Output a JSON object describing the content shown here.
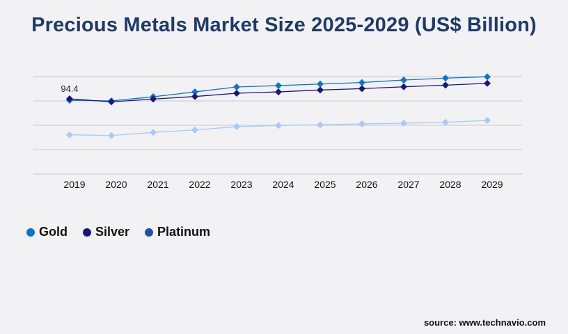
{
  "title": "Precious Metals Market Size 2025-2029 (US$ Billion)",
  "source": "source: www.technavio.com",
  "chart_data": {
    "type": "line",
    "title": "Precious Metals Market Size 2025-2029 (US$ Billion)",
    "categories": [
      "2019",
      "2020",
      "2021",
      "2022",
      "2023",
      "2024",
      "2025",
      "2026",
      "2027",
      "2028",
      "2029"
    ],
    "ylim": [
      0,
      122.4
    ],
    "grid": true,
    "y_tick_labels_shown": false,
    "legend_position": "bottom-left",
    "series": [
      {
        "name": "Gold",
        "color": "#0a74d0",
        "line_color": "#0a74d0",
        "values": [
          92.6,
          91.8,
          97.0,
          103.1,
          109.3,
          111.0,
          113.0,
          114.9,
          118.0,
          120.4,
          122.1
        ]
      },
      {
        "name": "Silver",
        "color": "#1a1580",
        "line_color": "#1a1580",
        "values": [
          94.4,
          90.6,
          94.1,
          97.3,
          101.4,
          103.1,
          105.5,
          107.2,
          109.5,
          111.6,
          113.9
        ]
      },
      {
        "name": "Platinum",
        "color": "#1f4fb0",
        "line_color": "#a8c8f8",
        "values": [
          49.2,
          48.3,
          52.2,
          55.3,
          59.4,
          60.9,
          61.8,
          62.9,
          63.8,
          64.9,
          67.3
        ]
      }
    ],
    "annotations": [
      {
        "text": "94.4",
        "series": "Silver",
        "category": "2019"
      }
    ]
  }
}
